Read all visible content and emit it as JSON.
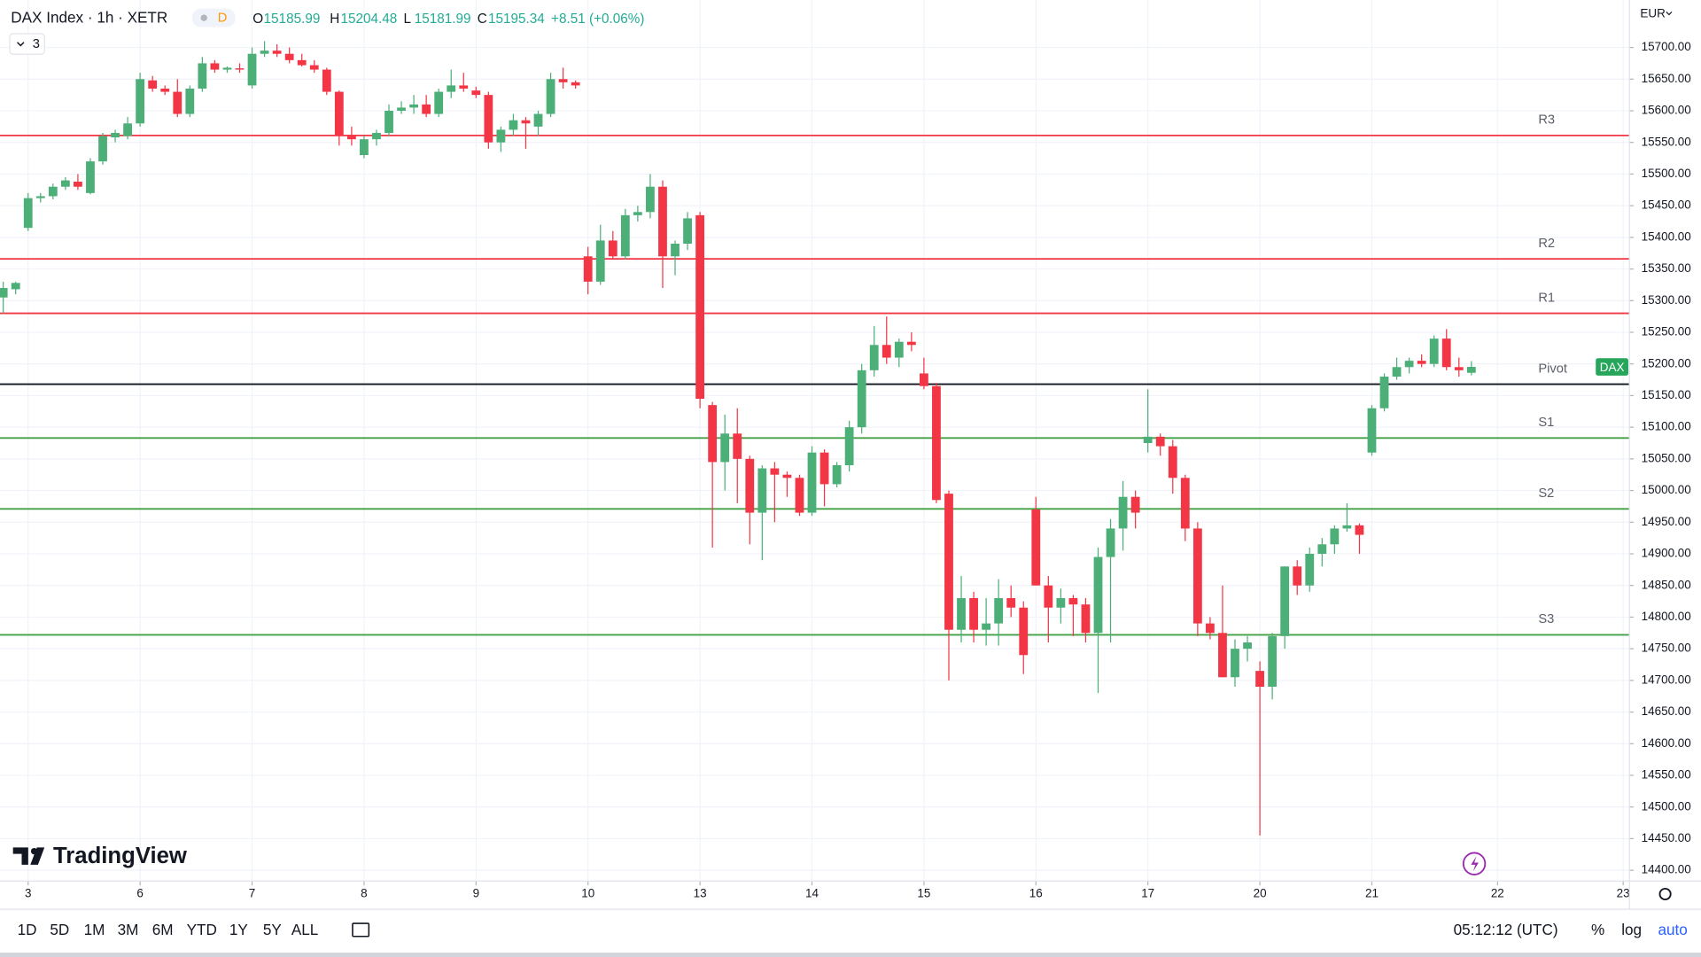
{
  "header": {
    "symbol": "DAX Index · 1h · XETR",
    "badge": "D",
    "ohlc": [
      {
        "key": "O",
        "value": "15185.99"
      },
      {
        "key": "H",
        "value": "15204.48"
      },
      {
        "key": "L",
        "value": "15181.99"
      },
      {
        "key": "C",
        "value": "15195.34"
      }
    ],
    "change": "+8.51 (+0.06%)",
    "indicators": "3"
  },
  "chart_data": {
    "type": "candlestick",
    "symbol_label": "DAX",
    "up_color": "#4caf78",
    "down_color": "#f23645",
    "grid": true,
    "xlim": [
      -0.26,
      130.7
    ],
    "xticks": [
      {
        "value": 2,
        "label": "3"
      },
      {
        "value": 11,
        "label": "6"
      },
      {
        "value": 20,
        "label": "7"
      },
      {
        "value": 29,
        "label": "8"
      },
      {
        "value": 38,
        "label": "9"
      },
      {
        "value": 47,
        "label": "10"
      },
      {
        "value": 56,
        "label": "13"
      },
      {
        "value": 65,
        "label": "14"
      },
      {
        "value": 74,
        "label": "15"
      },
      {
        "value": 83,
        "label": "16"
      },
      {
        "value": 92,
        "label": "17"
      },
      {
        "value": 101,
        "label": "20"
      },
      {
        "value": 110,
        "label": "21"
      },
      {
        "value": 120.1,
        "label": "22"
      },
      {
        "value": 130.2,
        "label": "23"
      }
    ],
    "ylim": [
      14383,
      15775
    ],
    "yticks": [
      {
        "value": 15700,
        "label": "15700.00"
      },
      {
        "value": 15650,
        "label": "15650.00"
      },
      {
        "value": 15600,
        "label": "15600.00"
      },
      {
        "value": 15550,
        "label": "15550.00"
      },
      {
        "value": 15500,
        "label": "15500.00"
      },
      {
        "value": 15450,
        "label": "15450.00"
      },
      {
        "value": 15400,
        "label": "15400.00"
      },
      {
        "value": 15350,
        "label": "15350.00"
      },
      {
        "value": 15300,
        "label": "15300.00"
      },
      {
        "value": 15250,
        "label": "15250.00"
      },
      {
        "value": 15200,
        "label": "15200.00"
      },
      {
        "value": 15150,
        "label": "15150.00"
      },
      {
        "value": 15100,
        "label": "15100.00"
      },
      {
        "value": 15050,
        "label": "15050.00"
      },
      {
        "value": 15000,
        "label": "15000.00"
      },
      {
        "value": 14950,
        "label": "14950.00"
      },
      {
        "value": 14900,
        "label": "14900.00"
      },
      {
        "value": 14850,
        "label": "14850.00"
      },
      {
        "value": 14800,
        "label": "14800.00"
      },
      {
        "value": 14750,
        "label": "14750.00"
      },
      {
        "value": 14700,
        "label": "14700.00"
      },
      {
        "value": 14650,
        "label": "14650.00"
      },
      {
        "value": 14600,
        "label": "14600.00"
      },
      {
        "value": 14550,
        "label": "14550.00"
      },
      {
        "value": 14500,
        "label": "14500.00"
      },
      {
        "value": 14450,
        "label": "14450.00"
      },
      {
        "value": 14400,
        "label": "14400.00"
      }
    ],
    "levels": [
      {
        "name": "R3",
        "value": 15561,
        "color": "#f23645"
      },
      {
        "name": "R2",
        "value": 15366,
        "color": "#f23645"
      },
      {
        "name": "R1",
        "value": 15280,
        "color": "#f23645"
      },
      {
        "name": "Pivot",
        "value": 15168,
        "color": "#131722"
      },
      {
        "name": "S1",
        "value": 15083,
        "color": "#43a047"
      },
      {
        "name": "S2",
        "value": 14971,
        "color": "#43a047"
      },
      {
        "name": "S3",
        "value": 14772,
        "color": "#43a047"
      }
    ],
    "open": [
      15305,
      15318,
      15415,
      15462,
      15465,
      15480,
      15488,
      15470,
      15520,
      15558,
      15560,
      15580,
      15648,
      15635,
      15630,
      15595,
      15635,
      15675,
      15665,
      15667,
      15640,
      15690,
      15695,
      15690,
      15680,
      15672,
      15665,
      15630,
      15560,
      15530,
      15555,
      15565,
      15600,
      15605,
      15610,
      15595,
      15630,
      15640,
      15632,
      15625,
      15550,
      15570,
      15585,
      15575,
      15595,
      15650,
      15645,
      15370,
      15330,
      15395,
      15370,
      15435,
      15440,
      15480,
      15370,
      15390,
      15435,
      15135,
      15045,
      15090,
      15050,
      14965,
      15035,
      15025,
      15020,
      14965,
      15060,
      15010,
      15040,
      15100,
      15190,
      15230,
      15210,
      15235,
      15185,
      15165,
      14995,
      14780,
      14830,
      14780,
      14790,
      14830,
      14815,
      14970,
      14850,
      14815,
      14830,
      14820,
      14775,
      14895,
      14940,
      14990,
      15075,
      15085,
      15070,
      15020,
      14940,
      14790,
      14775,
      14705,
      14750,
      14715,
      14690,
      14770,
      14880,
      14850,
      14900,
      14915,
      14940,
      14945,
      15060,
      15130,
      15180,
      15195,
      15205,
      15200,
      15240,
      15195,
      15185.99
    ],
    "high": [
      15330,
      15330,
      15470,
      15470,
      15485,
      15495,
      15500,
      15525,
      15565,
      15570,
      15590,
      15660,
      15655,
      15640,
      15650,
      15640,
      15685,
      15680,
      15670,
      15675,
      15700,
      15710,
      15705,
      15700,
      15690,
      15680,
      15668,
      15632,
      15575,
      15560,
      15570,
      15610,
      15615,
      15625,
      15625,
      15635,
      15665,
      15660,
      15638,
      15630,
      15575,
      15595,
      15590,
      15600,
      15660,
      15668,
      15648,
      15385,
      15420,
      15410,
      15445,
      15450,
      15500,
      15490,
      15395,
      15440,
      15440,
      15140,
      15120,
      15130,
      15055,
      15040,
      15045,
      15030,
      15025,
      15070,
      15065,
      15045,
      15110,
      15200,
      15260,
      15275,
      15240,
      15250,
      15210,
      15170,
      15000,
      14865,
      14840,
      14830,
      14860,
      14850,
      14825,
      14990,
      14865,
      14845,
      14835,
      14830,
      14910,
      14955,
      15015,
      15000,
      15160,
      15090,
      15080,
      15025,
      14950,
      14800,
      14850,
      14765,
      14770,
      14730,
      14775,
      14880,
      14890,
      14910,
      14925,
      14945,
      14980,
      14948,
      15135,
      15185,
      15210,
      15210,
      15215,
      15245,
      15255,
      15210,
      15204.48
    ],
    "low": [
      15280,
      15310,
      15410,
      15455,
      15460,
      15475,
      15475,
      15468,
      15515,
      15550,
      15555,
      15575,
      15630,
      15625,
      15590,
      15590,
      15630,
      15660,
      15660,
      15660,
      15635,
      15685,
      15685,
      15675,
      15670,
      15660,
      15625,
      15545,
      15545,
      15525,
      15545,
      15560,
      15595,
      15595,
      15590,
      15590,
      15620,
      15630,
      15620,
      15540,
      15535,
      15560,
      15540,
      15560,
      15590,
      15635,
      15635,
      15310,
      15325,
      15365,
      15365,
      15425,
      15430,
      15320,
      15340,
      15380,
      15130,
      14910,
      15000,
      14980,
      14915,
      14890,
      14950,
      14990,
      14960,
      14960,
      14975,
      15005,
      15030,
      15090,
      15180,
      15200,
      15195,
      15220,
      15160,
      14980,
      14700,
      14760,
      14760,
      14755,
      14755,
      14800,
      14710,
      14850,
      14760,
      14790,
      14770,
      14760,
      14680,
      14760,
      14905,
      14940,
      15060,
      15055,
      14995,
      14920,
      14770,
      14765,
      14705,
      14690,
      14730,
      14455,
      14670,
      14750,
      14835,
      14840,
      14880,
      14900,
      14935,
      14900,
      15055,
      15125,
      15175,
      15185,
      15195,
      15195,
      15190,
      15180,
      15181.99
    ],
    "close": [
      15320,
      15328,
      15462,
      15465,
      15480,
      15490,
      15480,
      15520,
      15560,
      15565,
      15580,
      15650,
      15635,
      15630,
      15595,
      15635,
      15675,
      15665,
      15668,
      15665,
      15690,
      15695,
      15690,
      15680,
      15672,
      15665,
      15630,
      15560,
      15555,
      15555,
      15565,
      15600,
      15605,
      15610,
      15595,
      15630,
      15640,
      15635,
      15625,
      15550,
      15570,
      15585,
      15580,
      15595,
      15650,
      15645,
      15640,
      15330,
      15395,
      15370,
      15435,
      15440,
      15480,
      15370,
      15390,
      15430,
      15145,
      15045,
      15090,
      15050,
      14965,
      15035,
      15025,
      15020,
      14965,
      15060,
      15010,
      15040,
      15100,
      15190,
      15230,
      15210,
      15235,
      15230,
      15165,
      14985,
      14780,
      14830,
      14780,
      14790,
      14830,
      14815,
      14740,
      14850,
      14815,
      14830,
      14820,
      14775,
      14895,
      14940,
      14990,
      14965,
      15085,
      15070,
      15020,
      14940,
      14790,
      14775,
      14705,
      14750,
      14760,
      14690,
      14770,
      14880,
      14850,
      14900,
      14915,
      14940,
      14945,
      14930,
      15130,
      15180,
      15195,
      15205,
      15200,
      15240,
      15195,
      15190,
      15195.34
    ]
  },
  "price_axis": {
    "currency": "EUR"
  },
  "logo": "TradingView",
  "toolbar": {
    "ranges": [
      "1D",
      "5D",
      "1M",
      "3M",
      "6M",
      "YTD",
      "1Y",
      "5Y",
      "ALL"
    ],
    "clock": "05:12:12 (UTC)",
    "options": [
      "%",
      "log",
      "auto"
    ]
  }
}
